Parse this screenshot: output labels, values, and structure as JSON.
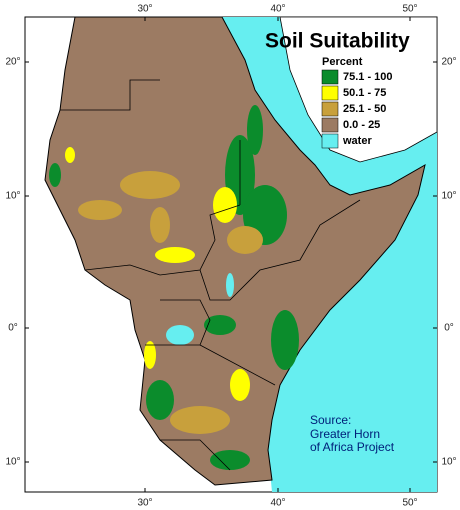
{
  "title": "Soil Suitability",
  "legend": {
    "title": "Percent",
    "items": [
      {
        "label": "75.1 - 100",
        "color": "#0b8c2c"
      },
      {
        "label": "50.1 - 75",
        "color": "#ffff00"
      },
      {
        "label": "25.1 - 50",
        "color": "#c8a03c"
      },
      {
        "label": "0.0 - 25",
        "color": "#9c7b63"
      },
      {
        "label": "water",
        "color": "#66eef0"
      }
    ]
  },
  "source": [
    "Source:",
    "Greater Horn",
    "of Africa Project"
  ],
  "longitude_labels": [
    "30°",
    "40°",
    "50°"
  ],
  "latitude_labels": [
    "20°",
    "10°",
    "0°",
    "10°"
  ]
}
